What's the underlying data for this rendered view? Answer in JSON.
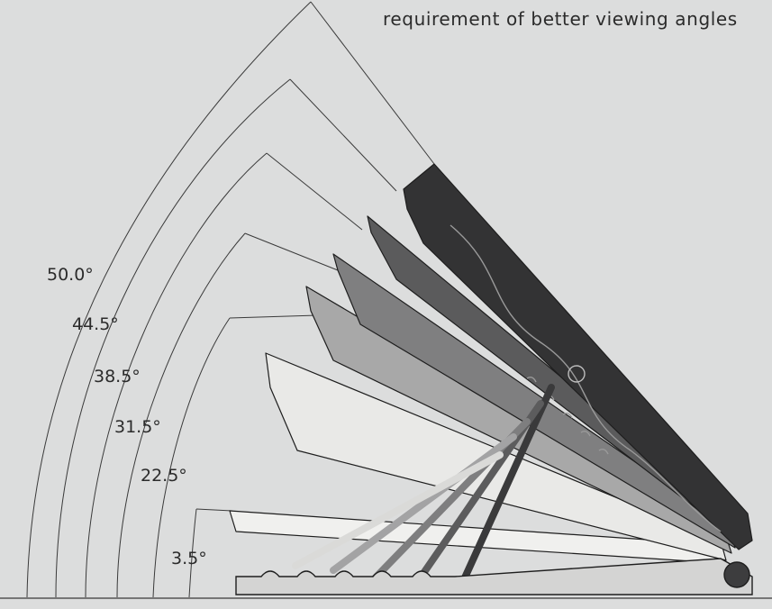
{
  "caption": "requirement of better viewing angles",
  "angles": [
    {
      "label": "50.0°",
      "value": 50.0
    },
    {
      "label": "44.5°",
      "value": 44.5
    },
    {
      "label": "38.5°",
      "value": 38.5
    },
    {
      "label": "31.5°",
      "value": 31.5
    },
    {
      "label": "22.5°",
      "value": 22.5
    },
    {
      "label": "3.5°",
      "value": 3.5
    }
  ],
  "colors": {
    "background": "#dcdddd",
    "line": "#3a3a3a",
    "text": "#2b2b2b",
    "plate_shades": [
      "#2f2f30",
      "#4a4a4b",
      "#646465",
      "#7d7d7e",
      "#a6a6a7",
      "#eeeeec"
    ]
  }
}
